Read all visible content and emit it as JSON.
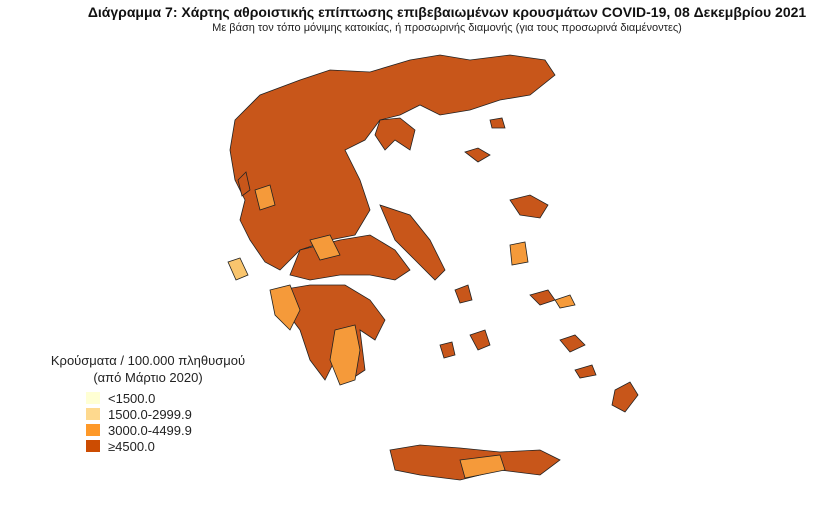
{
  "title": "Διάγραμμα 7: Χάρτης αθροιστικής επίπτωσης επιβεβαιωμένων κρουσμάτων COVID-19, 08 Δεκεμβρίου 2021",
  "subtitle": "Με βάση τον τόπο μόνιμης κατοικίας, ή προσωρινής διαμονής (για τους προσωρινά διαμένοντες)",
  "legend": {
    "title_line1": "Κρούσματα / 100.000 πληθυσμού",
    "title_line2": "(από Μάρτιο 2020)",
    "items": [
      {
        "label": "<1500.0",
        "color": "#FFFFD4"
      },
      {
        "label": "1500.0-2999.9",
        "color": "#FED98E"
      },
      {
        "label": "3000.0-4499.9",
        "color": "#FE9929"
      },
      {
        "label": "≥4500.0",
        "color": "#CC4C02"
      }
    ]
  },
  "map_colors": {
    "high": "#C8561A",
    "mid": "#F59A3A",
    "low": "#F9C56E",
    "border": "#222222"
  }
}
